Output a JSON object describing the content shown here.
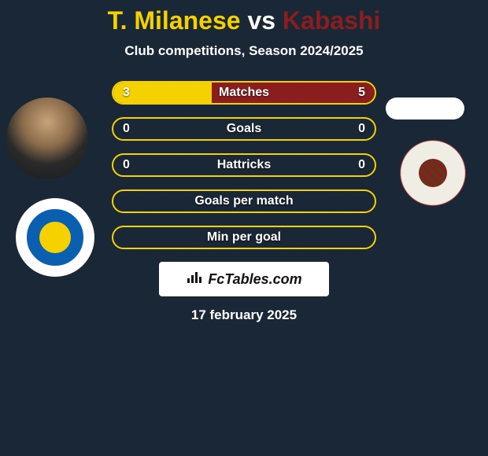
{
  "title": {
    "player1": "T. Milanese",
    "vs": "vs",
    "player2": "Kabashi",
    "player1_color": "#f5d100",
    "player2_color": "#8a1e1e",
    "vs_color": "#ffffff"
  },
  "subtitle": "Club competitions, Season 2024/2025",
  "accent_left": "#f5d100",
  "accent_right": "#8a1e1e",
  "bg_color": "#1a2736",
  "bars": [
    {
      "label": "Matches",
      "left": "3",
      "right": "5",
      "left_pct": 37.5,
      "right_pct": 62.5
    },
    {
      "label": "Goals",
      "left": "0",
      "right": "0",
      "left_pct": 0,
      "right_pct": 0
    },
    {
      "label": "Hattricks",
      "left": "0",
      "right": "0",
      "left_pct": 0,
      "right_pct": 0
    },
    {
      "label": "Goals per match",
      "left": "",
      "right": "",
      "left_pct": 0,
      "right_pct": 0
    },
    {
      "label": "Min per goal",
      "left": "",
      "right": "",
      "left_pct": 0,
      "right_pct": 0
    }
  ],
  "brand": "FcTables.com",
  "date": "17 february 2025"
}
